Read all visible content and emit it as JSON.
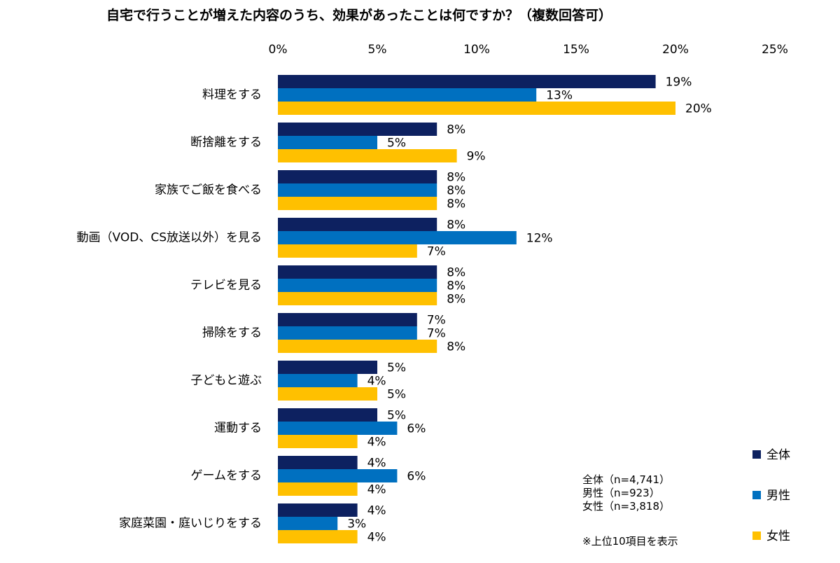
{
  "chart_data": {
    "type": "bar",
    "orientation": "horizontal",
    "title": "自宅で行うことが増えた内容のうち、効果があったことは何ですか？（複数回答可）",
    "categories": [
      "料理をする",
      "断捨離をする",
      "家族でご飯を食べる",
      "動画（VOD、CS放送以外）を見る",
      "テレビを見る",
      "掃除をする",
      "子どもと遊ぶ",
      "運動する",
      "ゲームをする",
      "家庭菜園・庭いじりをする"
    ],
    "series": [
      {
        "name": "全体",
        "color": "#0d2160",
        "values": [
          19,
          8,
          8,
          8,
          8,
          7,
          5,
          5,
          4,
          4
        ]
      },
      {
        "name": "男性",
        "color": "#0070c0",
        "values": [
          13,
          5,
          8,
          12,
          8,
          7,
          4,
          6,
          6,
          3
        ]
      },
      {
        "name": "女性",
        "color": "#ffc000",
        "values": [
          20,
          9,
          8,
          7,
          8,
          8,
          5,
          4,
          4,
          4
        ]
      }
    ],
    "value_unit": "%",
    "xlim": [
      0,
      25
    ],
    "x_ticks": [
      0,
      5,
      10,
      15,
      20,
      25
    ],
    "x_tick_labels": [
      "0%",
      "5%",
      "10%",
      "15%",
      "20%",
      "25%"
    ],
    "x_axis_position": "top",
    "grid": false,
    "legend_position": "bottom-right"
  },
  "notes": {
    "sample_sizes": [
      "全体（n=4,741）",
      "男性（n=923）",
      "女性（n=3,818）"
    ],
    "footnote": "※上位10項目を表示"
  }
}
